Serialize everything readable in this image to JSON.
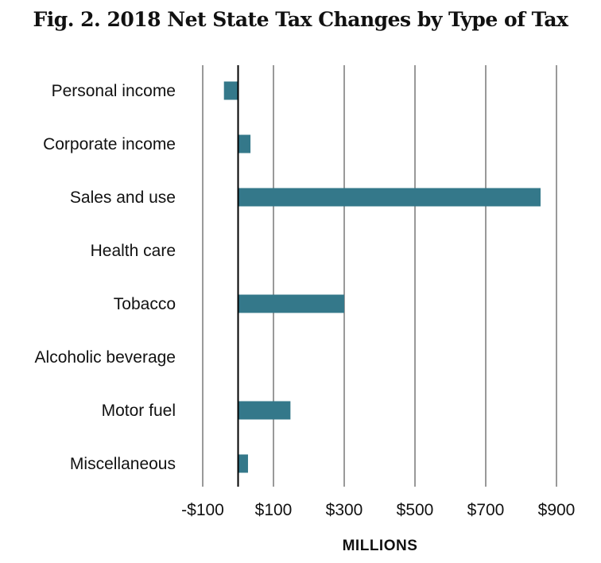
{
  "chart_data": {
    "type": "bar",
    "orientation": "horizontal",
    "title": "Fig. 2. 2018 Net State Tax Changes by Type of Tax",
    "xlabel": "MILLIONS",
    "ylabel": "",
    "categories": [
      "Personal income",
      "Corporate income",
      "Sales and use",
      "Health care",
      "Tobacco",
      "Alcoholic beverage",
      "Motor fuel",
      "Miscellaneous"
    ],
    "values": [
      -40,
      35,
      855,
      0,
      300,
      0,
      148,
      28
    ],
    "xlim": [
      -100,
      900
    ],
    "xticks": [
      -100,
      100,
      300,
      500,
      700,
      900
    ],
    "xtick_labels": [
      "-$100",
      "$100",
      "$300",
      "$500",
      "$700",
      "$900"
    ],
    "gridlines": [
      -100,
      100,
      300,
      500,
      700,
      900
    ],
    "bar_color": "#34788a",
    "grid": true
  }
}
